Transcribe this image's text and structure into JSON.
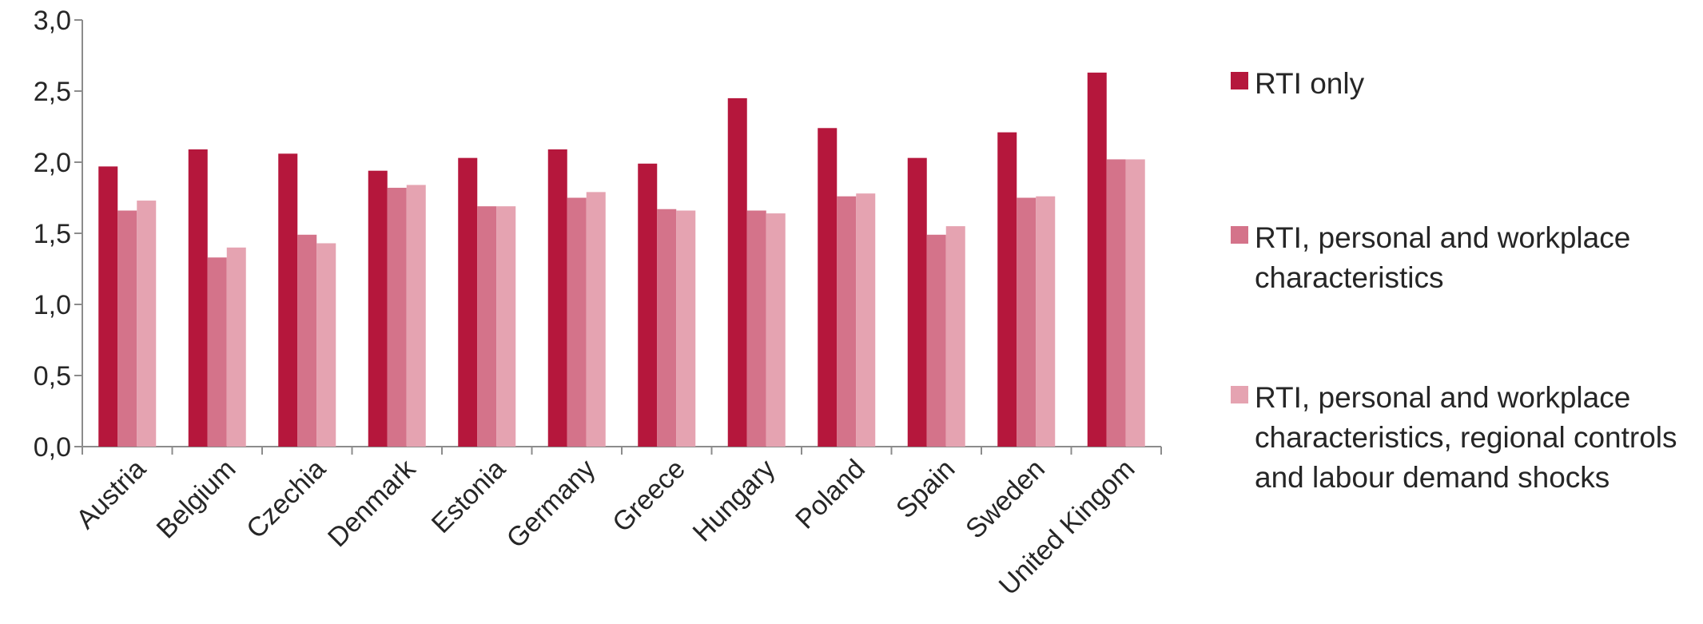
{
  "chart_data": {
    "type": "bar",
    "categories": [
      "Austria",
      "Belgium",
      "Czechia",
      "Denmark",
      "Estonia",
      "Germany",
      "Greece",
      "Hungary",
      "Poland",
      "Spain",
      "Sweden",
      "United Kingom"
    ],
    "series": [
      {
        "name": "RTI only",
        "color": "#b5173c",
        "values": [
          1.97,
          2.09,
          2.06,
          1.94,
          2.03,
          2.09,
          1.99,
          2.45,
          2.24,
          2.03,
          2.21,
          2.63
        ]
      },
      {
        "name": "RTI, personal and workplace characteristics",
        "color": "#d4738a",
        "values": [
          1.66,
          1.33,
          1.49,
          1.82,
          1.69,
          1.75,
          1.67,
          1.66,
          1.76,
          1.49,
          1.75,
          2.02
        ]
      },
      {
        "name": "RTI, personal and workplace characteristics, regional controls and labour demand shocks",
        "color": "#e5a3b1",
        "values": [
          1.73,
          1.4,
          1.43,
          1.84,
          1.69,
          1.79,
          1.66,
          1.64,
          1.78,
          1.55,
          1.76,
          2.02
        ]
      }
    ],
    "yticks": [
      "0,0",
      "0,5",
      "1,0",
      "1,5",
      "2,0",
      "2,5",
      "3,0"
    ],
    "ylim": [
      0,
      3.0
    ],
    "grid": false,
    "legend_position": "right",
    "title": "",
    "xlabel": "",
    "ylabel": ""
  }
}
